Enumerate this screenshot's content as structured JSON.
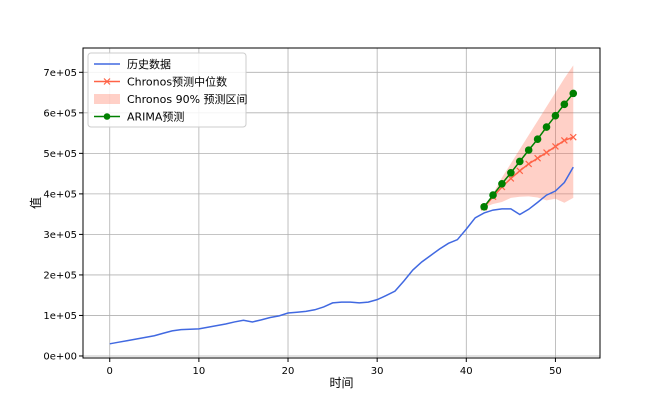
{
  "chart_data": {
    "type": "line",
    "xlabel": "时间",
    "ylabel": "值",
    "xlim": [
      -3,
      55
    ],
    "ylim": [
      -5000,
      760000
    ],
    "xticks": [
      0,
      10,
      20,
      30,
      40,
      50
    ],
    "yticks": [
      0,
      100000,
      200000,
      300000,
      400000,
      500000,
      600000,
      700000
    ],
    "ytick_labels": [
      "0e+00",
      "1e+05",
      "2e+05",
      "3e+05",
      "4e+05",
      "5e+05",
      "6e+05",
      "7e+05"
    ],
    "grid": true,
    "legend_position": "upper-left",
    "series": [
      {
        "name": "历史数据",
        "kind": "line",
        "color": "#4169e1",
        "x": [
          0,
          1,
          2,
          3,
          4,
          5,
          6,
          7,
          8,
          9,
          10,
          11,
          12,
          13,
          14,
          15,
          16,
          17,
          18,
          19,
          20,
          21,
          22,
          23,
          24,
          25,
          26,
          27,
          28,
          29,
          30,
          31,
          32,
          33,
          34,
          35,
          36,
          37,
          38,
          39,
          40,
          41,
          42,
          43,
          44,
          45,
          46,
          47,
          48,
          49,
          50,
          51,
          52
        ],
        "y": [
          30000,
          34000,
          38000,
          42000,
          46000,
          50000,
          56000,
          62000,
          65000,
          66000,
          67000,
          71000,
          75000,
          79000,
          84000,
          88000,
          84000,
          89000,
          95000,
          99000,
          106000,
          108000,
          110000,
          114000,
          121000,
          131000,
          133000,
          133000,
          131000,
          133000,
          139000,
          149000,
          160000,
          185000,
          212000,
          232000,
          248000,
          264000,
          278000,
          287000,
          313000,
          341000,
          353000,
          360000,
          363000,
          363000,
          349000,
          362000,
          379000,
          397000,
          407000,
          428000,
          466000
        ]
      },
      {
        "name": "Chronos预测中位数",
        "kind": "line-x-marker",
        "color": "#ff6347",
        "x": [
          42,
          43,
          44,
          45,
          46,
          47,
          48,
          49,
          50,
          51,
          52
        ],
        "y": [
          367000,
          393000,
          417000,
          438000,
          457000,
          474000,
          488000,
          502000,
          517000,
          532000,
          540000
        ]
      },
      {
        "name": "Chronos 90% 预测区间",
        "kind": "band",
        "color": "#ff6347",
        "x": [
          42,
          43,
          44,
          45,
          46,
          47,
          48,
          49,
          50,
          51,
          52
        ],
        "lower": [
          367000,
          375000,
          380000,
          390000,
          393000,
          394000,
          391000,
          384000,
          388000,
          378000,
          390000
        ],
        "upper": [
          367000,
          400000,
          440000,
          475000,
          510000,
          545000,
          580000,
          615000,
          650000,
          685000,
          717000
        ]
      },
      {
        "name": "ARIMA预测",
        "kind": "line-dot-marker",
        "color": "#008000",
        "x": [
          42,
          43,
          44,
          45,
          46,
          47,
          48,
          49,
          50,
          51,
          52
        ],
        "y": [
          368000,
          397000,
          425000,
          452000,
          480000,
          508000,
          535000,
          565000,
          593000,
          621000,
          648000
        ]
      }
    ]
  }
}
